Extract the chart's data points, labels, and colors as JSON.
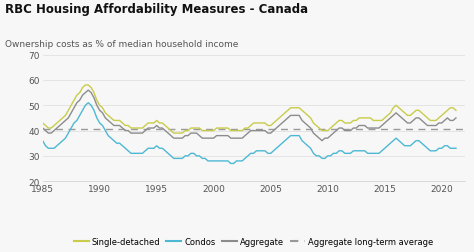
{
  "title": "RBC Housing Affordability Measures - Canada",
  "subtitle": "Ownership costs as % of median household income",
  "ylim": [
    20,
    70
  ],
  "xlim": [
    1985,
    2022
  ],
  "yticks": [
    20,
    30,
    40,
    50,
    60,
    70
  ],
  "xticks": [
    1985,
    1990,
    1995,
    2000,
    2005,
    2010,
    2015,
    2020
  ],
  "bg_color": "#f7f7f7",
  "plot_bg_color": "#f7f7f7",
  "color_single": "#c8cc4a",
  "color_condos": "#4db8d4",
  "color_aggregate": "#8c8c8c",
  "color_ltavg": "#999999",
  "long_term_avg": 40.5,
  "legend_labels": [
    "Single-detached",
    "Condos",
    "Aggregate",
    "Aggregate long-term average"
  ],
  "years": [
    1985.0,
    1985.25,
    1985.5,
    1985.75,
    1986.0,
    1986.25,
    1986.5,
    1986.75,
    1987.0,
    1987.25,
    1987.5,
    1987.75,
    1988.0,
    1988.25,
    1988.5,
    1988.75,
    1989.0,
    1989.25,
    1989.5,
    1989.75,
    1990.0,
    1990.25,
    1990.5,
    1990.75,
    1991.0,
    1991.25,
    1991.5,
    1991.75,
    1992.0,
    1992.25,
    1992.5,
    1992.75,
    1993.0,
    1993.25,
    1993.5,
    1993.75,
    1994.0,
    1994.25,
    1994.5,
    1994.75,
    1995.0,
    1995.25,
    1995.5,
    1995.75,
    1996.0,
    1996.25,
    1996.5,
    1996.75,
    1997.0,
    1997.25,
    1997.5,
    1997.75,
    1998.0,
    1998.25,
    1998.5,
    1998.75,
    1999.0,
    1999.25,
    1999.5,
    1999.75,
    2000.0,
    2000.25,
    2000.5,
    2000.75,
    2001.0,
    2001.25,
    2001.5,
    2001.75,
    2002.0,
    2002.25,
    2002.5,
    2002.75,
    2003.0,
    2003.25,
    2003.5,
    2003.75,
    2004.0,
    2004.25,
    2004.5,
    2004.75,
    2005.0,
    2005.25,
    2005.5,
    2005.75,
    2006.0,
    2006.25,
    2006.5,
    2006.75,
    2007.0,
    2007.25,
    2007.5,
    2007.75,
    2008.0,
    2008.25,
    2008.5,
    2008.75,
    2009.0,
    2009.25,
    2009.5,
    2009.75,
    2010.0,
    2010.25,
    2010.5,
    2010.75,
    2011.0,
    2011.25,
    2011.5,
    2011.75,
    2012.0,
    2012.25,
    2012.5,
    2012.75,
    2013.0,
    2013.25,
    2013.5,
    2013.75,
    2014.0,
    2014.25,
    2014.5,
    2014.75,
    2015.0,
    2015.25,
    2015.5,
    2015.75,
    2016.0,
    2016.25,
    2016.5,
    2016.75,
    2017.0,
    2017.25,
    2017.5,
    2017.75,
    2018.0,
    2018.25,
    2018.5,
    2018.75,
    2019.0,
    2019.25,
    2019.5,
    2019.75,
    2020.0,
    2020.25,
    2020.5,
    2020.75,
    2021.0,
    2021.25
  ],
  "single_detached": [
    43,
    42,
    41,
    41,
    42,
    43,
    44,
    45,
    46,
    48,
    50,
    52,
    54,
    55,
    57,
    58,
    58,
    57,
    55,
    52,
    50,
    49,
    47,
    46,
    45,
    44,
    44,
    44,
    43,
    42,
    42,
    41,
    41,
    41,
    41,
    41,
    42,
    43,
    43,
    43,
    44,
    43,
    43,
    42,
    41,
    40,
    39,
    39,
    39,
    39,
    40,
    40,
    41,
    41,
    41,
    41,
    40,
    40,
    40,
    40,
    40,
    41,
    41,
    41,
    41,
    41,
    40,
    40,
    40,
    40,
    40,
    41,
    41,
    42,
    43,
    43,
    43,
    43,
    43,
    42,
    42,
    43,
    44,
    45,
    46,
    47,
    48,
    49,
    49,
    49,
    49,
    48,
    47,
    46,
    45,
    43,
    42,
    41,
    40,
    40,
    40,
    41,
    42,
    43,
    44,
    44,
    43,
    43,
    43,
    44,
    44,
    45,
    45,
    45,
    45,
    45,
    44,
    44,
    44,
    44,
    45,
    46,
    47,
    49,
    50,
    49,
    48,
    47,
    46,
    46,
    47,
    48,
    48,
    47,
    46,
    45,
    44,
    44,
    44,
    45,
    46,
    47,
    48,
    49,
    49,
    48
  ],
  "condos": [
    36,
    34,
    33,
    33,
    33,
    34,
    35,
    36,
    37,
    39,
    41,
    43,
    44,
    46,
    48,
    50,
    51,
    50,
    48,
    45,
    43,
    42,
    40,
    38,
    37,
    36,
    35,
    35,
    34,
    33,
    32,
    31,
    31,
    31,
    31,
    31,
    32,
    33,
    33,
    33,
    34,
    33,
    33,
    32,
    31,
    30,
    29,
    29,
    29,
    29,
    30,
    30,
    31,
    31,
    30,
    30,
    29,
    29,
    28,
    28,
    28,
    28,
    28,
    28,
    28,
    28,
    27,
    27,
    28,
    28,
    28,
    29,
    30,
    31,
    31,
    32,
    32,
    32,
    32,
    31,
    31,
    32,
    33,
    34,
    35,
    36,
    37,
    38,
    38,
    38,
    38,
    36,
    35,
    34,
    33,
    31,
    30,
    30,
    29,
    29,
    30,
    30,
    31,
    31,
    32,
    32,
    31,
    31,
    31,
    32,
    32,
    32,
    32,
    32,
    31,
    31,
    31,
    31,
    31,
    32,
    33,
    34,
    35,
    36,
    37,
    36,
    35,
    34,
    34,
    34,
    35,
    36,
    36,
    35,
    34,
    33,
    32,
    32,
    32,
    33,
    33,
    34,
    34,
    33,
    33,
    33
  ],
  "aggregate": [
    41,
    40,
    39,
    39,
    40,
    41,
    42,
    43,
    44,
    45,
    47,
    49,
    51,
    52,
    54,
    55,
    56,
    55,
    53,
    50,
    48,
    47,
    45,
    44,
    43,
    42,
    42,
    42,
    41,
    40,
    40,
    39,
    39,
    39,
    39,
    39,
    40,
    41,
    41,
    41,
    42,
    41,
    41,
    40,
    39,
    38,
    37,
    37,
    37,
    37,
    38,
    38,
    39,
    39,
    39,
    38,
    37,
    37,
    37,
    37,
    37,
    38,
    38,
    38,
    38,
    38,
    37,
    37,
    37,
    37,
    37,
    38,
    39,
    40,
    40,
    40,
    40,
    40,
    40,
    39,
    39,
    40,
    41,
    42,
    43,
    44,
    45,
    46,
    46,
    46,
    46,
    44,
    43,
    42,
    41,
    39,
    38,
    37,
    36,
    37,
    37,
    38,
    39,
    40,
    41,
    41,
    40,
    40,
    40,
    41,
    41,
    42,
    42,
    42,
    41,
    41,
    41,
    41,
    41,
    42,
    43,
    44,
    45,
    46,
    47,
    46,
    45,
    44,
    43,
    43,
    44,
    45,
    45,
    44,
    43,
    42,
    42,
    42,
    42,
    43,
    43,
    44,
    45,
    44,
    44,
    45
  ]
}
